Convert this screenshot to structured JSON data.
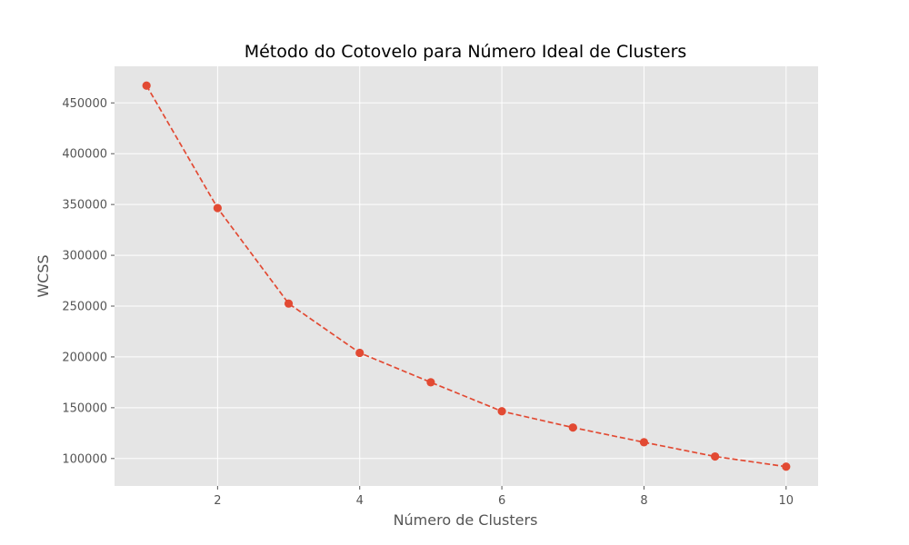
{
  "chart_data": {
    "type": "line",
    "title": "Método do Cotovelo para Número Ideal de Clusters",
    "xlabel": "Número de Clusters",
    "ylabel": "WCSS",
    "x": [
      1,
      2,
      3,
      4,
      5,
      6,
      7,
      8,
      9,
      10
    ],
    "series": [
      {
        "values": [
          467000,
          346500,
          252500,
          204000,
          175000,
          146500,
          130500,
          116000,
          102000,
          92000
        ]
      }
    ],
    "xlim": [
      0.55,
      10.45
    ],
    "ylim": [
      73000,
      486000
    ],
    "xticks": [
      2,
      4,
      6,
      8,
      10
    ],
    "yticks": [
      100000,
      150000,
      200000,
      250000,
      300000,
      350000,
      400000,
      450000
    ],
    "grid": true,
    "line_style": "dashed",
    "marker": "circle",
    "colors": {
      "line": "#E24A33",
      "axes_background": "#E5E5E5",
      "grid": "#FFFFFF",
      "tick_text": "#555555",
      "title_text": "#000000"
    }
  }
}
